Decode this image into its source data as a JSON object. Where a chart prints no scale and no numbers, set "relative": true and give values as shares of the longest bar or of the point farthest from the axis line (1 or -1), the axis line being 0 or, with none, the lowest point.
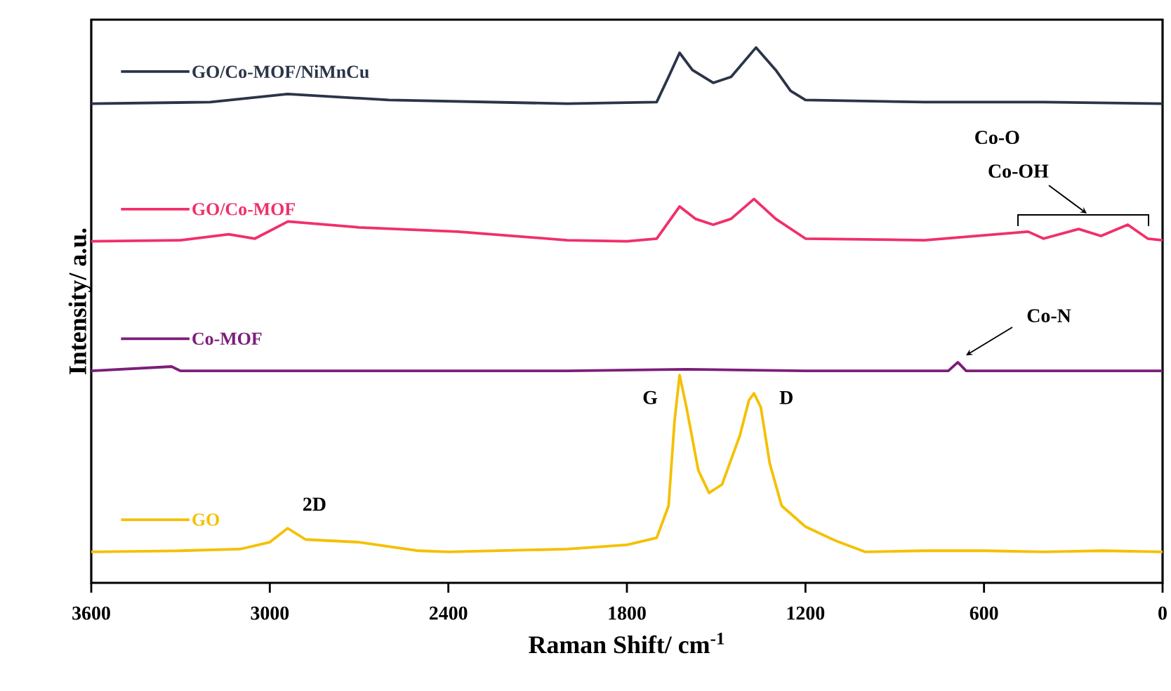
{
  "chart_data": {
    "type": "line",
    "relative": true,
    "xlabel": "Raman Shift/ cm$^{-1}$",
    "ylabel": "Intensity/ a.u.",
    "xlim": [
      3600,
      0
    ],
    "xticks": [
      3600,
      3000,
      2400,
      1800,
      1200,
      600,
      0
    ],
    "x": [
      3600,
      3300,
      3100,
      3000,
      2940,
      2880,
      2700,
      2500,
      2400,
      2000,
      1800,
      1700,
      1660,
      1640,
      1623,
      1600,
      1560,
      1524,
      1480,
      1420,
      1390,
      1373,
      1350,
      1320,
      1280,
      1200,
      1100,
      1000,
      800,
      600,
      400,
      200,
      0
    ],
    "series": [
      {
        "name": "GO/Co-MOF/NiMnCu",
        "color": "#2b3548",
        "x": [
          3600,
          3200,
          2940,
          2600,
          2000,
          1700,
          1660,
          1623,
          1580,
          1510,
          1450,
          1366,
          1300,
          1250,
          1200,
          800,
          400,
          0
        ],
        "values": [
          0.895,
          0.898,
          0.913,
          0.902,
          0.895,
          0.898,
          0.945,
          0.99,
          0.958,
          0.934,
          0.945,
          1.0,
          0.958,
          0.919,
          0.902,
          0.898,
          0.898,
          0.895
        ]
      },
      {
        "name": "GO/Co-MOF",
        "color": "#f0306a",
        "x": [
          3600,
          3300,
          3138,
          3050,
          2939,
          2700,
          2368,
          2000,
          1800,
          1700,
          1623,
          1570,
          1510,
          1450,
          1373,
          1300,
          1200,
          800,
          452,
          400,
          282,
          207,
          117,
          50,
          0
        ],
        "values": [
          0.638,
          0.64,
          0.651,
          0.643,
          0.675,
          0.664,
          0.656,
          0.64,
          0.638,
          0.643,
          0.703,
          0.68,
          0.669,
          0.68,
          0.717,
          0.68,
          0.643,
          0.64,
          0.656,
          0.643,
          0.661,
          0.648,
          0.669,
          0.643,
          0.64
        ]
      },
      {
        "name": "Co-MOF",
        "color": "#7b1e7a",
        "x": [
          3600,
          3330,
          3300,
          2000,
          1600,
          1200,
          720,
          688,
          660,
          0
        ],
        "values": [
          0.396,
          0.404,
          0.396,
          0.396,
          0.399,
          0.396,
          0.396,
          0.412,
          0.396,
          0.396
        ]
      },
      {
        "name": "GO",
        "color": "#f5c000",
        "values": [
          0.058,
          0.06,
          0.063,
          0.076,
          0.102,
          0.081,
          0.076,
          0.06,
          0.058,
          0.063,
          0.071,
          0.084,
          0.144,
          0.302,
          0.388,
          0.328,
          0.21,
          0.168,
          0.184,
          0.276,
          0.341,
          0.354,
          0.328,
          0.223,
          0.144,
          0.105,
          0.079,
          0.058,
          0.06,
          0.06,
          0.058,
          0.06,
          0.058
        ]
      }
    ],
    "legend": "left",
    "annotations": [
      "G",
      "D",
      "2D",
      "Co-N",
      "Co-O",
      "Co-OH"
    ]
  }
}
